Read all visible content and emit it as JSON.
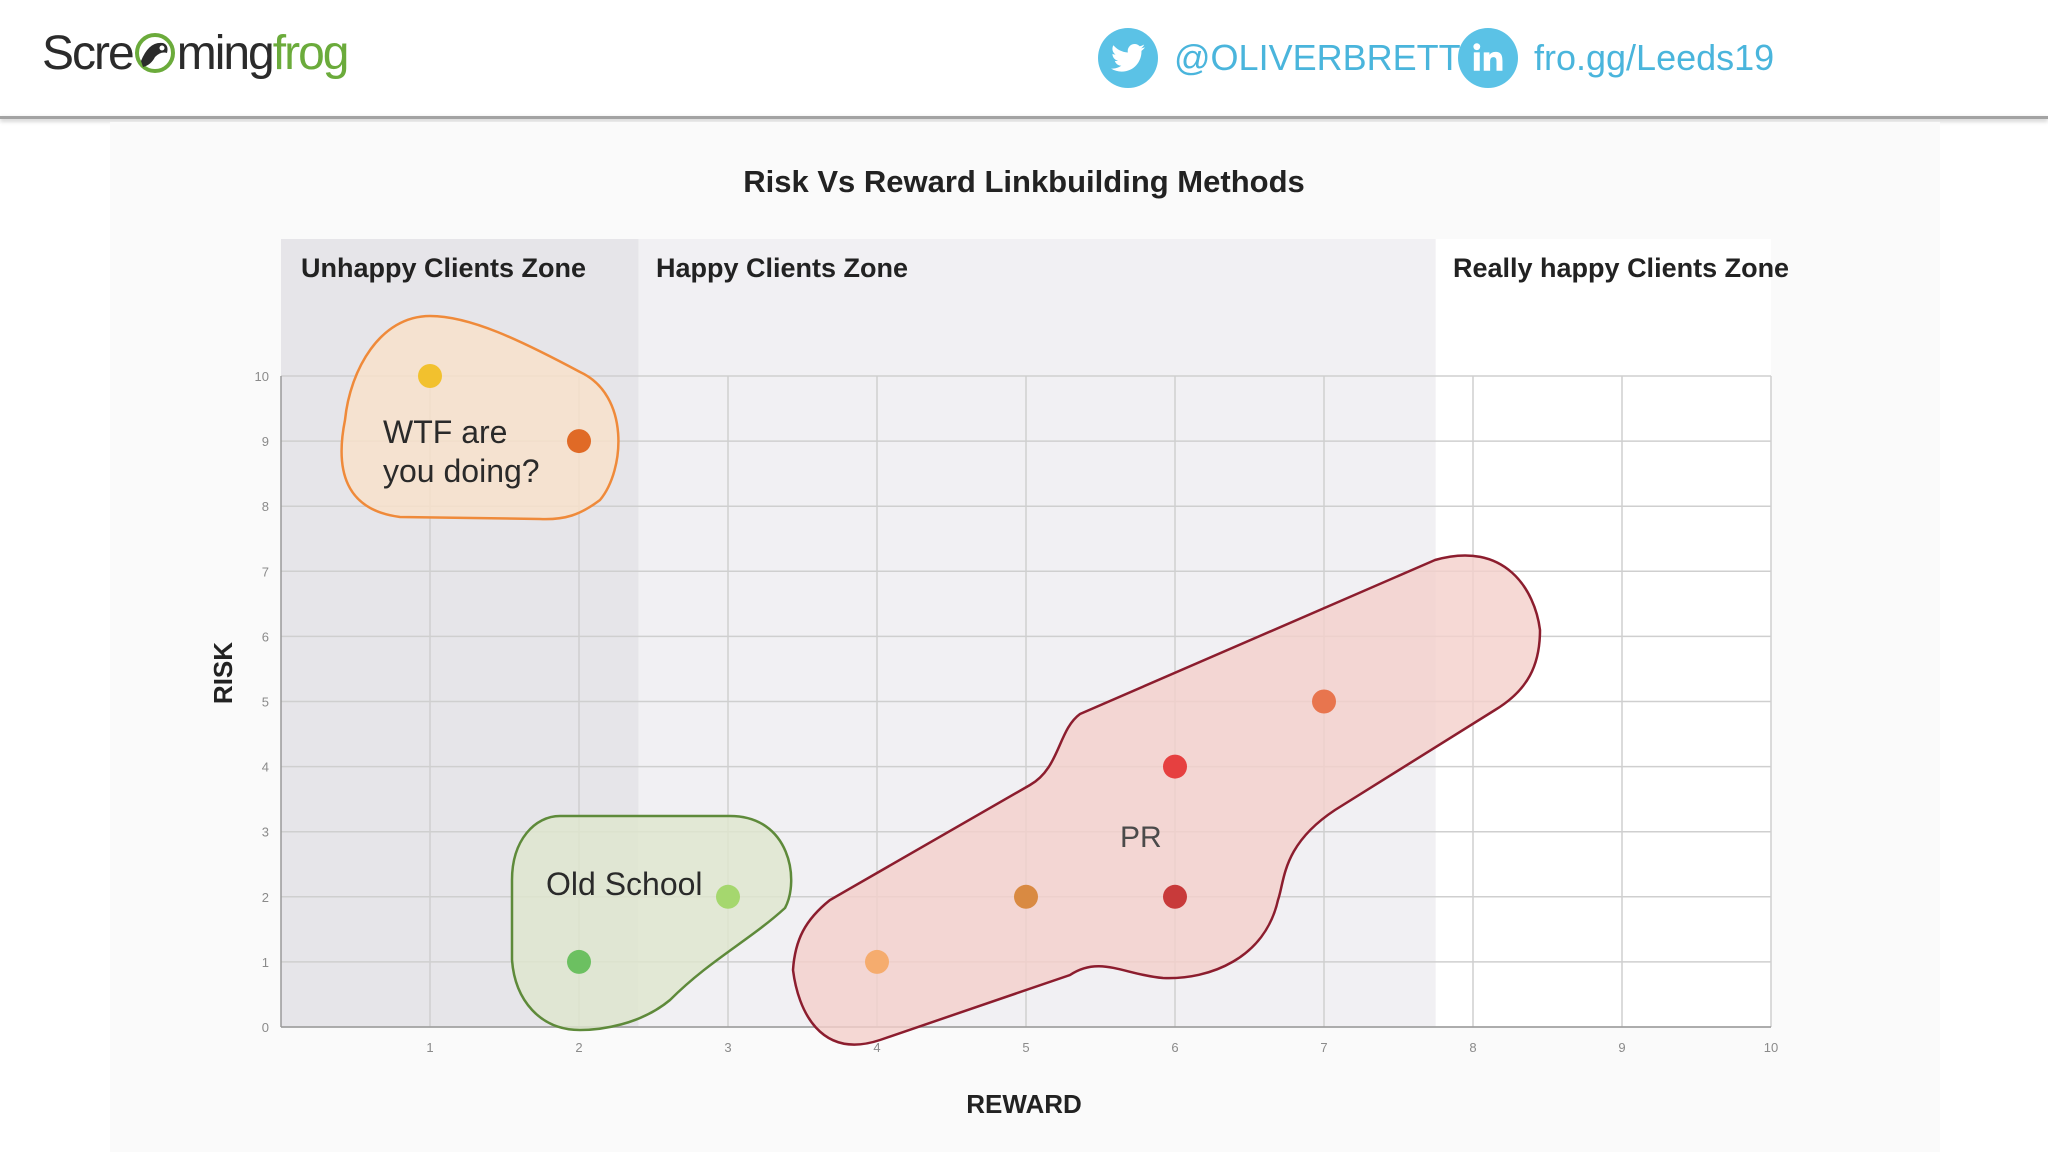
{
  "header": {
    "logo_part1": "Scre",
    "logo_part2": "ming",
    "logo_part3": "frog",
    "twitter_handle": "@OLIVERBRETT",
    "twitter_icon": "twitter-icon",
    "link_url": "fro.gg/Leeds19",
    "linkedin_icon": "linkedin-icon",
    "accent_color": "#5bc2e6",
    "brand_green": "#6bab3b"
  },
  "chart_data": {
    "type": "scatter",
    "title": "Risk Vs Reward Linkbuilding Methods",
    "xlabel": "REWARD",
    "ylabel": "RISK",
    "xlim": [
      0,
      10
    ],
    "ylim": [
      0,
      10
    ],
    "x_ticks": [
      "1",
      "2",
      "3",
      "4",
      "5",
      "6",
      "7",
      "8",
      "9",
      "10"
    ],
    "y_ticks": [
      "0",
      "1",
      "2",
      "3",
      "4",
      "5",
      "6",
      "7",
      "8",
      "9",
      "10"
    ],
    "grid": true,
    "zones": [
      {
        "label": "Unhappy Clients Zone",
        "x_range": [
          0,
          2.4
        ],
        "color": "#e6e5e9"
      },
      {
        "label": "Happy Clients Zone",
        "x_range": [
          2.4,
          7.75
        ],
        "color": "#f1f0f3"
      },
      {
        "label": "Really happy Clients Zone",
        "x_range": [
          7.75,
          10
        ],
        "color": "#ffffff"
      }
    ],
    "groups": [
      {
        "label": "WTF are you doing?",
        "line1": "WTF are",
        "line2": "you doing?",
        "stroke": "#ef8a3a",
        "fill": "#f9e1c9"
      },
      {
        "label": "Old School",
        "stroke": "#5e8a3a",
        "fill": "#dfe6cd"
      },
      {
        "label": "PR",
        "stroke": "#8c1d2e",
        "fill": "#f4cfca"
      }
    ],
    "points": [
      {
        "x": 1,
        "y": 10,
        "color": "#f2c12e",
        "group": "WTF are you doing?"
      },
      {
        "x": 2,
        "y": 9,
        "color": "#e06a26",
        "group": "WTF are you doing?"
      },
      {
        "x": 2,
        "y": 1,
        "color": "#6cc061",
        "group": "Old School"
      },
      {
        "x": 3,
        "y": 2,
        "color": "#a5d76e",
        "group": "Old School"
      },
      {
        "x": 4,
        "y": 1,
        "color": "#f5ac6e",
        "group": "PR"
      },
      {
        "x": 5,
        "y": 2,
        "color": "#d98a42",
        "group": "PR"
      },
      {
        "x": 6,
        "y": 4,
        "color": "#e64040",
        "group": "PR"
      },
      {
        "x": 6,
        "y": 2,
        "color": "#c83a3a",
        "group": "PR"
      },
      {
        "x": 7,
        "y": 5,
        "color": "#e8754e",
        "group": "PR"
      }
    ]
  }
}
